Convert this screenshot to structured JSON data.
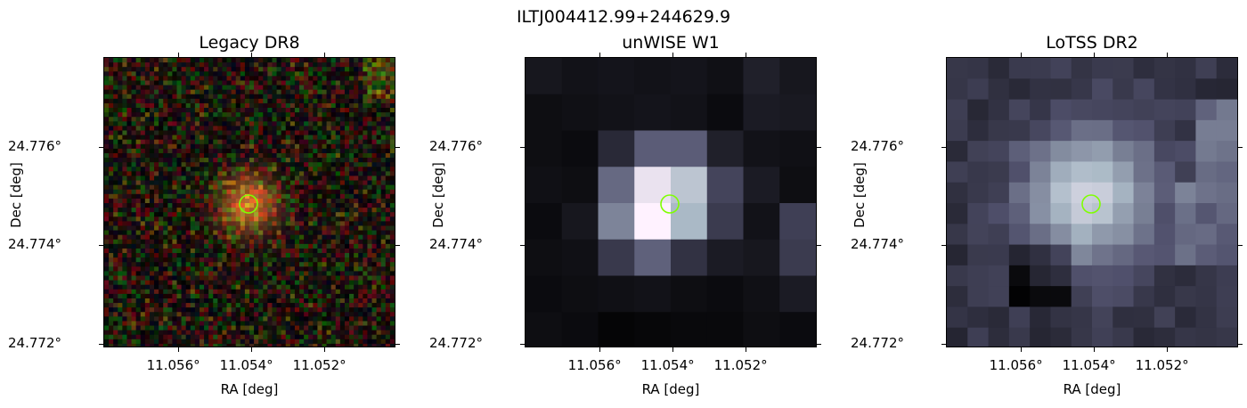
{
  "source_name": "ILTJ004412.99+244629.9",
  "panels": [
    {
      "title": "Legacy DR8",
      "colormap": "rgb-optical"
    },
    {
      "title": "unWISE W1",
      "colormap": "bone"
    },
    {
      "title": "LoTSS DR2",
      "colormap": "bone"
    }
  ],
  "axes": {
    "xlabel": "RA [deg]",
    "ylabel": "Dec [deg]",
    "xticks": [
      "11.056°",
      "11.054°",
      "11.052°"
    ],
    "yticks": [
      "24.776°",
      "24.774°",
      "24.772°"
    ]
  },
  "marker": {
    "shape": "circle",
    "color": "#7fff00"
  }
}
